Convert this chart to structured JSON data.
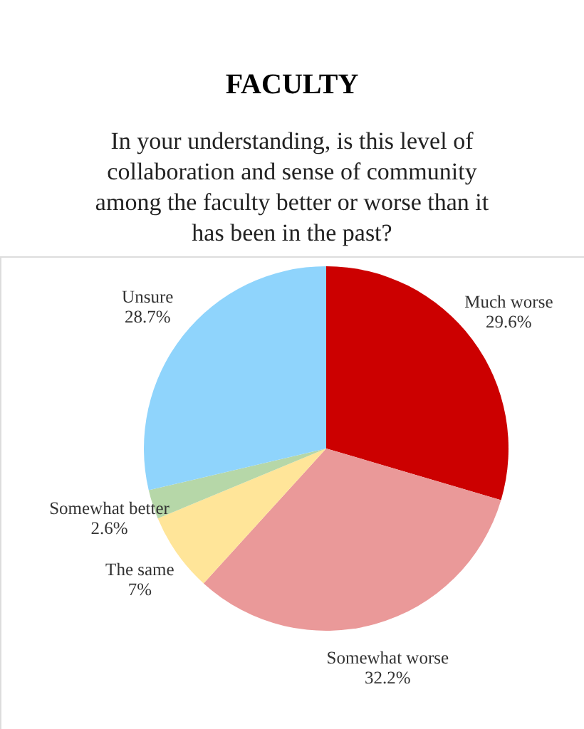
{
  "chart_data": {
    "type": "pie",
    "title": "FACULTY",
    "subtitle": "In your understanding, is this level of collaboration and sense of community among the faculty better or worse than it has been in the past?",
    "categories": [
      "Much worse",
      "Somewhat worse",
      "The same",
      "Somewhat better",
      "Unsure"
    ],
    "values": [
      29.6,
      32.2,
      7,
      2.6,
      28.7
    ],
    "colors": [
      "#cc0000",
      "#ea9999",
      "#ffe599",
      "#b6d7a8",
      "#8fd4fc"
    ],
    "value_labels": [
      "29.6%",
      "32.2%",
      "7%",
      "2.6%",
      "28.7%"
    ]
  }
}
